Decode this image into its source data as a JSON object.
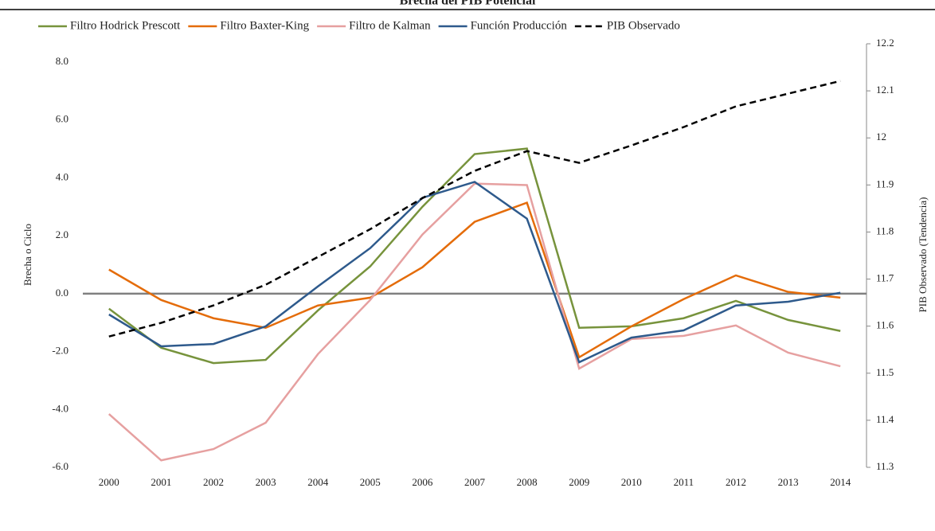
{
  "chart_data": {
    "type": "line",
    "title": "Brecha del PIB Potencial",
    "y_label": "Brecha o Ciclo",
    "y2_label": "PIB Observado  (Tendencia)",
    "categories": [
      "2000",
      "2001",
      "2002",
      "2003",
      "2004",
      "2005",
      "2006",
      "2007",
      "2008",
      "2009",
      "2010",
      "2011",
      "2012",
      "2013",
      "2014"
    ],
    "series": [
      {
        "name": "Filtro Hodrick Prescott",
        "color": "#77933c",
        "values": [
          -0.52,
          -1.87,
          -2.4,
          -2.29,
          -0.58,
          0.94,
          3.0,
          4.82,
          5.01,
          -1.18,
          -1.13,
          -0.85,
          -0.25,
          -0.91,
          -1.29
        ]
      },
      {
        "name": "Filtro Baxter-King",
        "color": "#e46c0a",
        "values": [
          0.83,
          -0.22,
          -0.85,
          -1.18,
          -0.41,
          -0.14,
          0.91,
          2.48,
          3.14,
          -2.2,
          -1.13,
          -0.19,
          0.63,
          0.06,
          -0.14
        ]
      },
      {
        "name": "Filtro de Kalman",
        "color": "#e6a0a0",
        "values": [
          -4.16,
          -5.76,
          -5.37,
          -4.46,
          -2.09,
          -0.22,
          2.04,
          3.8,
          3.75,
          -2.59,
          -1.57,
          -1.46,
          -1.1,
          -2.04,
          -2.51
        ]
      },
      {
        "name": "Función Producción",
        "color": "#2e5a8c",
        "values": [
          -0.72,
          -1.82,
          -1.74,
          -1.13,
          0.25,
          1.57,
          3.31,
          3.86,
          2.59,
          -2.37,
          -1.52,
          -1.27,
          -0.41,
          -0.28,
          0.03
        ]
      },
      {
        "name": "PIB Observado",
        "color": "#000000",
        "dashed": true,
        "axis": "y2",
        "values": [
          11.578,
          11.607,
          11.644,
          11.688,
          11.747,
          11.806,
          11.872,
          11.93,
          11.972,
          11.947,
          11.984,
          12.023,
          12.067,
          12.094,
          12.121
        ]
      }
    ],
    "ylim": [
      -6,
      8.63
    ],
    "yticks": [
      {
        "value": -6,
        "label": "-6.0"
      },
      {
        "value": -4,
        "label": "-4.0"
      },
      {
        "value": -2,
        "label": "-2.0"
      },
      {
        "value": 0,
        "label": "0.0"
      },
      {
        "value": 2,
        "label": "2.0"
      },
      {
        "value": 4,
        "label": "4.0"
      },
      {
        "value": 6,
        "label": "6.0"
      },
      {
        "value": 8,
        "label": "8.0"
      }
    ],
    "y2lim": [
      11.3,
      12.2
    ],
    "y2ticks": [
      11.3,
      11.4,
      11.5,
      11.6,
      11.7,
      11.8,
      11.9,
      12.0,
      12.1,
      12.2
    ],
    "legend": "top",
    "grid": false
  }
}
